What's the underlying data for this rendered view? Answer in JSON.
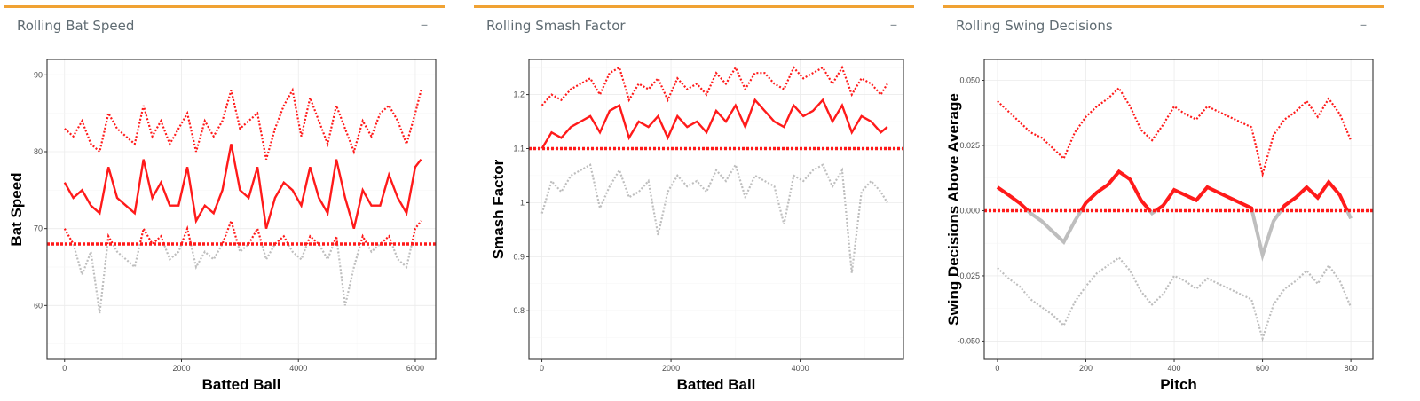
{
  "panels": [
    {
      "title": "Rolling Bat Speed",
      "collapse_icon": "minus-icon",
      "chart_data": {
        "type": "line",
        "xlabel": "Batted Ball",
        "ylabel": "Bat Speed",
        "xlim": [
          -300,
          6350
        ],
        "ylim": [
          53,
          92
        ],
        "xticks": [
          0,
          2000,
          4000,
          6000
        ],
        "yticks": [
          60,
          70,
          80,
          90
        ],
        "grid": true,
        "reference_line": 68,
        "colors": {
          "above": "#ff1a1a",
          "below": "#bebebe"
        },
        "series": [
          {
            "line": "solid",
            "x": [
              0,
              150,
              300,
              450,
              600,
              750,
              900,
              1050,
              1200,
              1350,
              1500,
              1650,
              1800,
              1950,
              2100,
              2250,
              2400,
              2550,
              2700,
              2850,
              3000,
              3150,
              3300,
              3450,
              3600,
              3750,
              3900,
              4050,
              4200,
              4350,
              4500,
              4650,
              4800,
              4950,
              5100,
              5250,
              5400,
              5550,
              5700,
              5850,
              6000,
              6100
            ],
            "y": [
              76,
              74,
              75,
              73,
              72,
              78,
              74,
              73,
              72,
              79,
              74,
              76,
              73,
              73,
              78,
              71,
              73,
              72,
              75,
              81,
              75,
              74,
              78,
              70,
              74,
              76,
              75,
              73,
              78,
              74,
              72,
              79,
              74,
              70,
              75,
              73,
              73,
              77,
              74,
              72,
              78,
              79
            ]
          },
          {
            "line": "dotted",
            "x": [
              0,
              150,
              300,
              450,
              600,
              750,
              900,
              1050,
              1200,
              1350,
              1500,
              1650,
              1800,
              1950,
              2100,
              2250,
              2400,
              2550,
              2700,
              2850,
              3000,
              3150,
              3300,
              3450,
              3600,
              3750,
              3900,
              4050,
              4200,
              4350,
              4500,
              4650,
              4800,
              4950,
              5100,
              5250,
              5400,
              5550,
              5700,
              5850,
              6000,
              6100
            ],
            "y": [
              83,
              82,
              84,
              81,
              80,
              85,
              83,
              82,
              81,
              86,
              82,
              84,
              81,
              83,
              85,
              80,
              84,
              82,
              84,
              88,
              83,
              84,
              85,
              79,
              83,
              86,
              88,
              82,
              87,
              84,
              81,
              86,
              83,
              80,
              84,
              82,
              85,
              86,
              84,
              81,
              85,
              88
            ]
          },
          {
            "line": "dotted",
            "x": [
              0,
              150,
              300,
              450,
              600,
              750,
              900,
              1050,
              1200,
              1350,
              1500,
              1650,
              1800,
              1950,
              2100,
              2250,
              2400,
              2550,
              2700,
              2850,
              3000,
              3150,
              3300,
              3450,
              3600,
              3750,
              3900,
              4050,
              4200,
              4350,
              4500,
              4650,
              4800,
              4950,
              5100,
              5250,
              5400,
              5550,
              5700,
              5850,
              6000,
              6100
            ],
            "y": [
              70,
              68,
              64,
              67,
              59,
              69,
              67,
              66,
              65,
              70,
              68,
              69,
              66,
              67,
              70,
              65,
              67,
              66,
              68,
              71,
              67,
              68,
              70,
              66,
              68,
              69,
              67,
              66,
              69,
              68,
              66,
              69,
              60,
              65,
              69,
              67,
              68,
              69,
              66,
              65,
              70,
              71
            ]
          }
        ]
      }
    },
    {
      "title": "Rolling Smash Factor",
      "collapse_icon": "minus-icon",
      "chart_data": {
        "type": "line",
        "xlabel": "Batted Ball",
        "ylabel": "Smash Factor",
        "xlim": [
          -200,
          5600
        ],
        "ylim": [
          0.71,
          1.265
        ],
        "xticks": [
          0,
          2000,
          4000
        ],
        "yticks": [
          0.8,
          0.9,
          1.0,
          1.1,
          1.2
        ],
        "grid": true,
        "reference_line": 1.1,
        "colors": {
          "above": "#ff1a1a",
          "below": "#bebebe"
        },
        "series": [
          {
            "line": "solid",
            "x": [
              0,
              150,
              300,
              450,
              600,
              750,
              900,
              1050,
              1200,
              1350,
              1500,
              1650,
              1800,
              1950,
              2100,
              2250,
              2400,
              2550,
              2700,
              2850,
              3000,
              3150,
              3300,
              3450,
              3600,
              3750,
              3900,
              4050,
              4200,
              4350,
              4500,
              4650,
              4800,
              4950,
              5100,
              5250,
              5350
            ],
            "y": [
              1.1,
              1.13,
              1.12,
              1.14,
              1.15,
              1.16,
              1.13,
              1.17,
              1.18,
              1.12,
              1.15,
              1.14,
              1.16,
              1.12,
              1.16,
              1.14,
              1.15,
              1.13,
              1.17,
              1.15,
              1.18,
              1.14,
              1.19,
              1.17,
              1.15,
              1.14,
              1.18,
              1.16,
              1.17,
              1.19,
              1.15,
              1.18,
              1.13,
              1.16,
              1.15,
              1.13,
              1.14
            ]
          },
          {
            "line": "dotted",
            "x": [
              0,
              150,
              300,
              450,
              600,
              750,
              900,
              1050,
              1200,
              1350,
              1500,
              1650,
              1800,
              1950,
              2100,
              2250,
              2400,
              2550,
              2700,
              2850,
              3000,
              3150,
              3300,
              3450,
              3600,
              3750,
              3900,
              4050,
              4200,
              4350,
              4500,
              4650,
              4800,
              4950,
              5100,
              5250,
              5350
            ],
            "y": [
              1.18,
              1.2,
              1.19,
              1.21,
              1.22,
              1.23,
              1.2,
              1.24,
              1.25,
              1.19,
              1.22,
              1.21,
              1.23,
              1.19,
              1.23,
              1.21,
              1.22,
              1.2,
              1.24,
              1.22,
              1.25,
              1.21,
              1.24,
              1.24,
              1.22,
              1.21,
              1.25,
              1.23,
              1.24,
              1.25,
              1.22,
              1.25,
              1.2,
              1.23,
              1.22,
              1.2,
              1.22
            ]
          },
          {
            "line": "dotted",
            "x": [
              0,
              150,
              300,
              450,
              600,
              750,
              900,
              1050,
              1200,
              1350,
              1500,
              1650,
              1800,
              1950,
              2100,
              2250,
              2400,
              2550,
              2700,
              2850,
              3000,
              3150,
              3300,
              3450,
              3600,
              3750,
              3900,
              4050,
              4200,
              4350,
              4500,
              4650,
              4800,
              4950,
              5100,
              5250,
              5350
            ],
            "y": [
              0.98,
              1.04,
              1.02,
              1.05,
              1.06,
              1.07,
              0.99,
              1.03,
              1.06,
              1.01,
              1.02,
              1.04,
              0.94,
              1.02,
              1.05,
              1.03,
              1.04,
              1.02,
              1.06,
              1.04,
              1.07,
              1.01,
              1.05,
              1.04,
              1.03,
              0.96,
              1.05,
              1.04,
              1.06,
              1.07,
              1.03,
              1.06,
              0.87,
              1.02,
              1.04,
              1.02,
              1.0
            ]
          }
        ]
      }
    },
    {
      "title": "Rolling Swing Decisions",
      "collapse_icon": "minus-icon",
      "chart_data": {
        "type": "line",
        "xlabel": "Pitch",
        "ylabel": "Swing Decisions Above Average",
        "xlim": [
          -30,
          850
        ],
        "ylim": [
          -0.057,
          0.058
        ],
        "xticks": [
          0,
          200,
          400,
          600,
          800
        ],
        "yticks": [
          -0.05,
          -0.025,
          0.0,
          0.025,
          0.05
        ],
        "ytick_labels": [
          "-0.050",
          "-0.025",
          "0.000",
          "0.025",
          "0.050"
        ],
        "grid": true,
        "reference_line": 0.0,
        "colors": {
          "above": "#ff1a1a",
          "below": "#bebebe"
        },
        "series": [
          {
            "line": "solid",
            "x": [
              0,
              25,
              50,
              75,
              100,
              125,
              150,
              175,
              200,
              225,
              250,
              275,
              300,
              325,
              350,
              375,
              400,
              425,
              450,
              475,
              500,
              525,
              550,
              575,
              600,
              625,
              650,
              675,
              700,
              725,
              750,
              775,
              800
            ],
            "y": [
              0.009,
              0.006,
              0.003,
              -0.001,
              -0.004,
              -0.008,
              -0.012,
              -0.004,
              0.003,
              0.007,
              0.01,
              0.015,
              0.012,
              0.004,
              -0.001,
              0.002,
              0.008,
              0.006,
              0.004,
              0.009,
              0.007,
              0.005,
              0.003,
              0.001,
              -0.017,
              -0.004,
              0.002,
              0.005,
              0.009,
              0.005,
              0.011,
              0.006,
              -0.003
            ]
          },
          {
            "line": "dotted",
            "x": [
              0,
              25,
              50,
              75,
              100,
              125,
              150,
              175,
              200,
              225,
              250,
              275,
              300,
              325,
              350,
              375,
              400,
              425,
              450,
              475,
              500,
              525,
              550,
              575,
              600,
              625,
              650,
              675,
              700,
              725,
              750,
              775,
              800
            ],
            "y": [
              0.042,
              0.038,
              0.034,
              0.03,
              0.028,
              0.024,
              0.02,
              0.03,
              0.036,
              0.04,
              0.043,
              0.047,
              0.04,
              0.031,
              0.027,
              0.033,
              0.04,
              0.037,
              0.035,
              0.04,
              0.038,
              0.036,
              0.034,
              0.032,
              0.014,
              0.029,
              0.035,
              0.038,
              0.042,
              0.036,
              0.043,
              0.037,
              0.027
            ]
          },
          {
            "line": "dotted",
            "x": [
              0,
              25,
              50,
              75,
              100,
              125,
              150,
              175,
              200,
              225,
              250,
              275,
              300,
              325,
              350,
              375,
              400,
              425,
              450,
              475,
              500,
              525,
              550,
              575,
              600,
              625,
              650,
              675,
              700,
              725,
              750,
              775,
              800
            ],
            "y": [
              -0.022,
              -0.026,
              -0.029,
              -0.034,
              -0.037,
              -0.04,
              -0.044,
              -0.035,
              -0.029,
              -0.024,
              -0.021,
              -0.018,
              -0.023,
              -0.031,
              -0.036,
              -0.032,
              -0.025,
              -0.027,
              -0.03,
              -0.026,
              -0.028,
              -0.03,
              -0.032,
              -0.034,
              -0.049,
              -0.036,
              -0.03,
              -0.027,
              -0.023,
              -0.028,
              -0.021,
              -0.027,
              -0.037
            ]
          }
        ]
      }
    }
  ]
}
